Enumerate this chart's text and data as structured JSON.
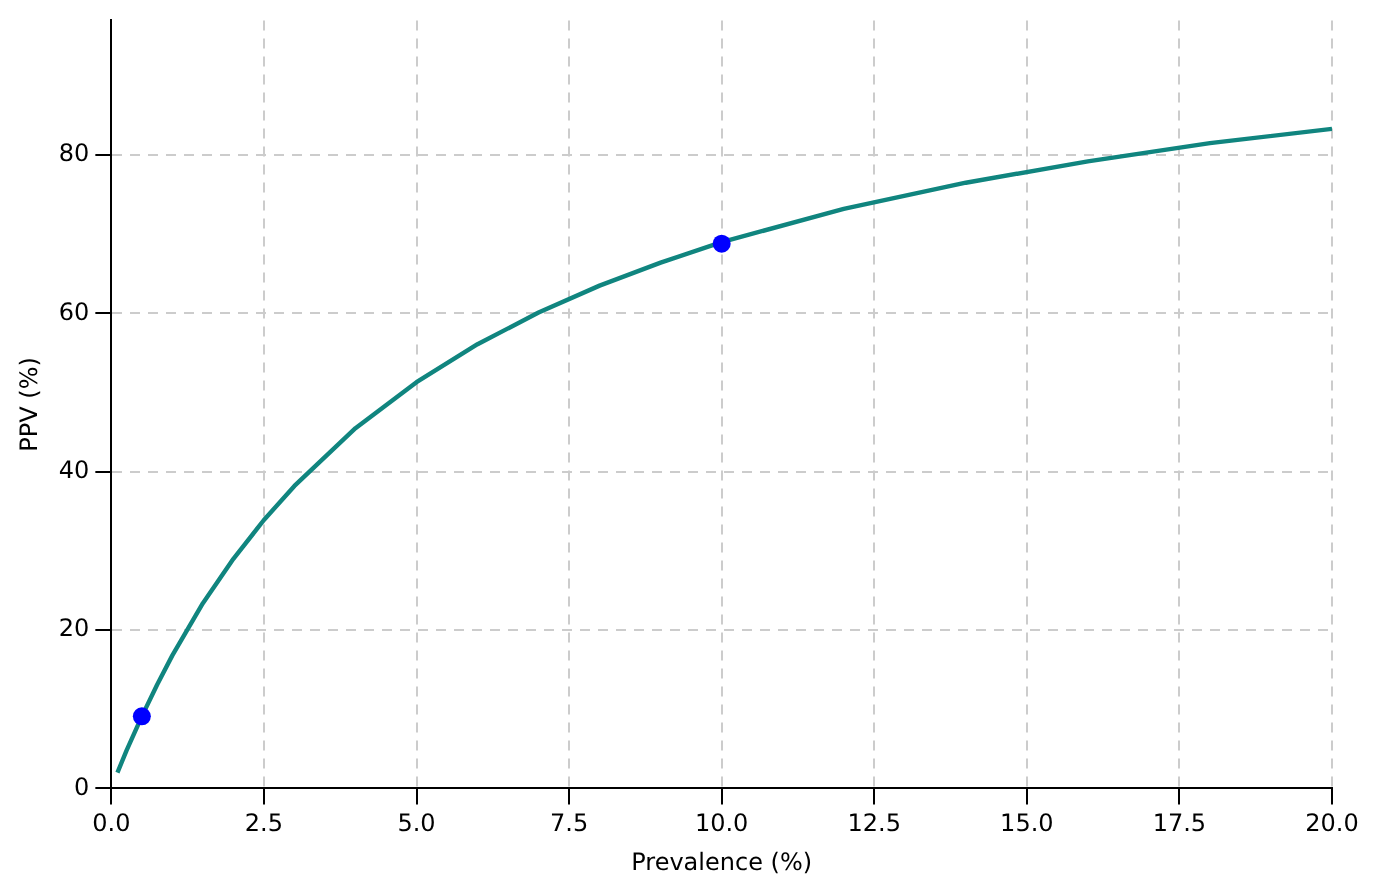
{
  "chart_data": {
    "type": "line",
    "xlabel": "Prevalence (%)",
    "ylabel": "PPV (%)",
    "xlim": [
      0,
      20
    ],
    "xticks": [
      {
        "value": 0,
        "label": "0.0"
      },
      2.5,
      {
        "value": 5,
        "label": "5.0"
      },
      7.5,
      {
        "value": 10,
        "label": "10.0"
      },
      12.5,
      {
        "value": 15,
        "label": "15.0"
      },
      17.5,
      {
        "value": 20,
        "label": "20.0"
      }
    ],
    "ylim": [
      0,
      97
    ],
    "yticks": [
      0,
      20,
      40,
      60,
      80
    ],
    "grid": true,
    "legend": false,
    "series": [
      {
        "color": "#10857f",
        "marker": "none",
        "x": [
          0.1,
          0.25,
          0.5,
          0.75,
          1,
          1.5,
          2,
          2.5,
          3,
          4,
          5,
          6,
          7,
          8,
          9,
          10,
          12,
          14,
          16,
          18,
          20
        ],
        "values": [
          2.0,
          4.8,
          9.1,
          13.1,
          16.8,
          23.4,
          29.0,
          33.9,
          38.2,
          45.5,
          51.3,
          56.1,
          60.1,
          63.5,
          66.4,
          69.0,
          73.2,
          76.5,
          79.2,
          81.5,
          83.3
        ]
      },
      {
        "type": "scatter",
        "color": "#0000ff",
        "marker": "circle",
        "x": [
          0.5,
          10
        ],
        "values": [
          9.1,
          68.8
        ]
      }
    ]
  }
}
